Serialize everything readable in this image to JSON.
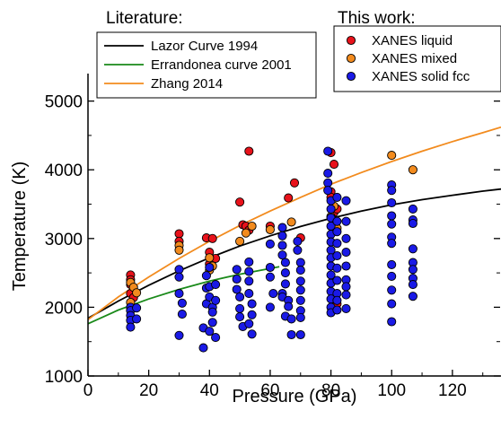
{
  "chart_data": {
    "type": "scatter",
    "xlabel": "Pressure (GPa)",
    "ylabel": "Temperature (K)",
    "xlim": [
      0,
      136
    ],
    "ylim": [
      1000,
      5400
    ],
    "x_ticks": [
      0,
      20,
      40,
      60,
      80,
      100,
      120
    ],
    "y_ticks": [
      1000,
      2000,
      3000,
      4000,
      5000
    ],
    "grid": false,
    "legend_headings": {
      "literature": "Literature:",
      "this_work": "This work:"
    },
    "lines": [
      {
        "name": "Lazor Curve 1994",
        "color": "#000000",
        "x": [
          0,
          10,
          20,
          30,
          40,
          50,
          60,
          70,
          80,
          90,
          100,
          110,
          120,
          130,
          136
        ],
        "y": [
          1840,
          2090,
          2320,
          2530,
          2720,
          2890,
          3040,
          3175,
          3295,
          3400,
          3490,
          3565,
          3630,
          3690,
          3720
        ]
      },
      {
        "name": "Errandonea curve 2001",
        "color": "#1a8a1a",
        "x": [
          0,
          10,
          20,
          30,
          40,
          50,
          63
        ],
        "y": [
          1760,
          1960,
          2120,
          2260,
          2380,
          2480,
          2590
        ]
      },
      {
        "name": "Zhang 2014",
        "color": "#f28b1e",
        "x": [
          0,
          10,
          20,
          30,
          40,
          50,
          60,
          70,
          80,
          90,
          100,
          110,
          120,
          130,
          136
        ],
        "y": [
          1820,
          2150,
          2440,
          2710,
          2960,
          3190,
          3400,
          3600,
          3790,
          3960,
          4120,
          4270,
          4410,
          4540,
          4620
        ]
      }
    ],
    "series": [
      {
        "name": "XANES liquid",
        "color": "#e8121b",
        "points": [
          [
            14,
            2470
          ],
          [
            14,
            2400
          ],
          [
            14,
            2330
          ],
          [
            15,
            2240
          ],
          [
            14,
            2200
          ],
          [
            15,
            2140
          ],
          [
            30,
            3070
          ],
          [
            30,
            2960
          ],
          [
            39,
            3010
          ],
          [
            41,
            3000
          ],
          [
            40,
            2800
          ],
          [
            42,
            2710
          ],
          [
            40,
            2630
          ],
          [
            50,
            3530
          ],
          [
            51,
            3200
          ],
          [
            52,
            3180
          ],
          [
            53,
            3120
          ],
          [
            53,
            4270
          ],
          [
            60,
            3180
          ],
          [
            66,
            3590
          ],
          [
            68,
            3810
          ],
          [
            70,
            3010
          ],
          [
            80,
            4250
          ],
          [
            81,
            4080
          ],
          [
            80,
            3680
          ],
          [
            80,
            3600
          ],
          [
            81,
            3380
          ],
          [
            82,
            3430
          ],
          [
            82,
            2050
          ]
        ]
      },
      {
        "name": "XANES mixed",
        "color": "#f28b1e",
        "points": [
          [
            14,
            2360
          ],
          [
            15,
            2290
          ],
          [
            16,
            2210
          ],
          [
            14,
            2070
          ],
          [
            30,
            2900
          ],
          [
            30,
            2830
          ],
          [
            40,
            2720
          ],
          [
            41,
            2600
          ],
          [
            40,
            2540
          ],
          [
            50,
            2960
          ],
          [
            52,
            3080
          ],
          [
            54,
            3180
          ],
          [
            60,
            3130
          ],
          [
            67,
            3240
          ],
          [
            80,
            3320
          ],
          [
            81,
            3470
          ],
          [
            82,
            3150
          ],
          [
            100,
            4210
          ],
          [
            107,
            4000
          ]
        ]
      },
      {
        "name": "XANES solid fcc",
        "color": "#1a1ae6",
        "points": [
          [
            14,
            2000
          ],
          [
            14,
            1950
          ],
          [
            14,
            1880
          ],
          [
            14,
            1810
          ],
          [
            14,
            1710
          ],
          [
            16,
            1990
          ],
          [
            16,
            1830
          ],
          [
            30,
            2550
          ],
          [
            30,
            2440
          ],
          [
            30,
            2200
          ],
          [
            31,
            2060
          ],
          [
            31,
            1900
          ],
          [
            30,
            1590
          ],
          [
            38,
            1410
          ],
          [
            38,
            1700
          ],
          [
            39,
            2050
          ],
          [
            39,
            2280
          ],
          [
            39,
            2460
          ],
          [
            40,
            2580
          ],
          [
            40,
            2300
          ],
          [
            40,
            2150
          ],
          [
            41,
            2000
          ],
          [
            41,
            1930
          ],
          [
            41,
            1780
          ],
          [
            40,
            1650
          ],
          [
            42,
            1560
          ],
          [
            42,
            2330
          ],
          [
            42,
            2100
          ],
          [
            49,
            2550
          ],
          [
            49,
            2410
          ],
          [
            49,
            2260
          ],
          [
            50,
            2150
          ],
          [
            50,
            1980
          ],
          [
            50,
            1860
          ],
          [
            51,
            1720
          ],
          [
            53,
            2660
          ],
          [
            53,
            2520
          ],
          [
            53,
            2380
          ],
          [
            53,
            2200
          ],
          [
            54,
            2050
          ],
          [
            54,
            1890
          ],
          [
            53,
            1760
          ],
          [
            54,
            1610
          ],
          [
            60,
            2920
          ],
          [
            60,
            2580
          ],
          [
            60,
            2440
          ],
          [
            61,
            2200
          ],
          [
            60,
            2000
          ],
          [
            64,
            3160
          ],
          [
            64,
            3040
          ],
          [
            64,
            2900
          ],
          [
            64,
            2760
          ],
          [
            65,
            2650
          ],
          [
            65,
            2500
          ],
          [
            65,
            2340
          ],
          [
            64,
            2200
          ],
          [
            64,
            2150
          ],
          [
            65,
            1870
          ],
          [
            66,
            2100
          ],
          [
            66,
            2010
          ],
          [
            67,
            1830
          ],
          [
            67,
            1600
          ],
          [
            69,
            2960
          ],
          [
            69,
            2830
          ],
          [
            70,
            2650
          ],
          [
            70,
            2540
          ],
          [
            70,
            2380
          ],
          [
            70,
            2250
          ],
          [
            70,
            2100
          ],
          [
            70,
            1950
          ],
          [
            70,
            1850
          ],
          [
            70,
            1600
          ],
          [
            79,
            4270
          ],
          [
            79,
            3950
          ],
          [
            79,
            3810
          ],
          [
            79,
            3700
          ],
          [
            80,
            3550
          ],
          [
            80,
            3430
          ],
          [
            80,
            3300
          ],
          [
            80,
            3180
          ],
          [
            80,
            3060
          ],
          [
            80,
            2950
          ],
          [
            80,
            2830
          ],
          [
            80,
            2720
          ],
          [
            80,
            2600
          ],
          [
            80,
            2470
          ],
          [
            80,
            2350
          ],
          [
            80,
            2230
          ],
          [
            80,
            2120
          ],
          [
            80,
            2000
          ],
          [
            80,
            1920
          ],
          [
            82,
            3600
          ],
          [
            82,
            3250
          ],
          [
            82,
            3100
          ],
          [
            82,
            2930
          ],
          [
            82,
            2750
          ],
          [
            82,
            2570
          ],
          [
            82,
            2390
          ],
          [
            82,
            2200
          ],
          [
            82,
            2100
          ],
          [
            82,
            1960
          ],
          [
            85,
            3000
          ],
          [
            85,
            3250
          ],
          [
            85,
            2800
          ],
          [
            85,
            2600
          ],
          [
            85,
            2400
          ],
          [
            85,
            2300
          ],
          [
            85,
            2180
          ],
          [
            85,
            3550
          ],
          [
            85,
            1980
          ],
          [
            100,
            3780
          ],
          [
            100,
            3700
          ],
          [
            100,
            3520
          ],
          [
            100,
            3330
          ],
          [
            100,
            3210
          ],
          [
            100,
            3020
          ],
          [
            100,
            2930
          ],
          [
            100,
            2620
          ],
          [
            100,
            2450
          ],
          [
            100,
            2250
          ],
          [
            100,
            2050
          ],
          [
            100,
            1790
          ],
          [
            107,
            3430
          ],
          [
            107,
            3270
          ],
          [
            107,
            3220
          ],
          [
            107,
            2850
          ],
          [
            107,
            2650
          ],
          [
            107,
            2550
          ],
          [
            107,
            2420
          ],
          [
            107,
            2330
          ],
          [
            107,
            2160
          ]
        ]
      }
    ]
  }
}
